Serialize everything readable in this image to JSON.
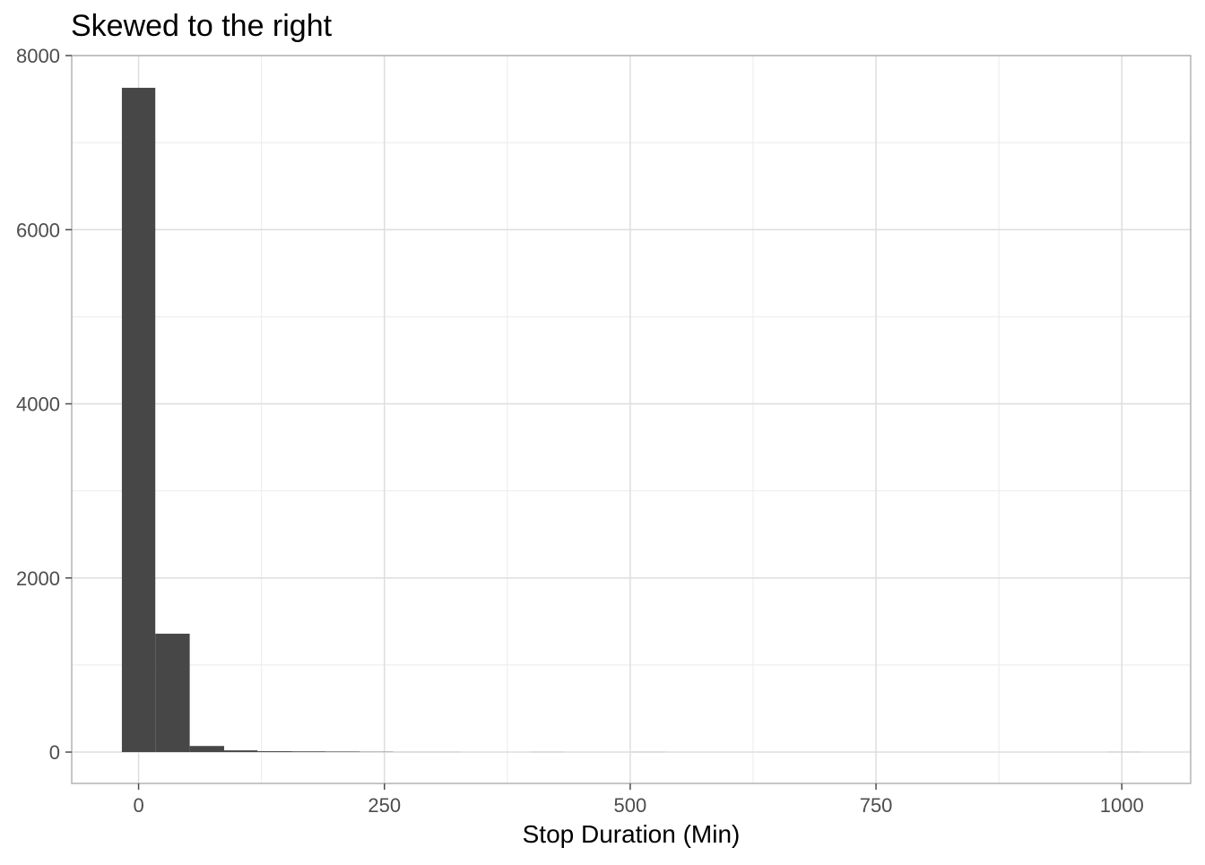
{
  "chart_data": {
    "type": "bar",
    "subtype": "histogram",
    "title": "Skewed to the right",
    "xlabel": "Stop Duration (Min)",
    "ylabel": "",
    "xlim": [
      -68,
      1070
    ],
    "ylim": [
      -360,
      8000
    ],
    "x_ticks": [
      0,
      250,
      500,
      750,
      1000
    ],
    "x_tick_labels": [
      "0",
      "250",
      "500",
      "750",
      "1000"
    ],
    "y_ticks": [
      0,
      2000,
      4000,
      6000,
      8000
    ],
    "y_tick_labels": [
      "0",
      "2000",
      "4000",
      "6000",
      "8000"
    ],
    "grid": true,
    "bar_color": "#474747",
    "bins": [
      {
        "x0": -17,
        "x1": 17,
        "count": 7630
      },
      {
        "x0": 17,
        "x1": 52,
        "count": 1360
      },
      {
        "x0": 52,
        "x1": 87,
        "count": 70
      },
      {
        "x0": 87,
        "x1": 121,
        "count": 20
      },
      {
        "x0": 121,
        "x1": 156,
        "count": 10
      },
      {
        "x0": 156,
        "x1": 190,
        "count": 8
      },
      {
        "x0": 190,
        "x1": 225,
        "count": 6
      },
      {
        "x0": 225,
        "x1": 259,
        "count": 3
      },
      {
        "x0": 259,
        "x1": 294,
        "count": 1
      },
      {
        "x0": 294,
        "x1": 328,
        "count": 1
      },
      {
        "x0": 328,
        "x1": 363,
        "count": 0
      },
      {
        "x0": 363,
        "x1": 398,
        "count": 0
      },
      {
        "x0": 398,
        "x1": 432,
        "count": 1
      },
      {
        "x0": 432,
        "x1": 467,
        "count": 0
      },
      {
        "x0": 467,
        "x1": 501,
        "count": 0
      },
      {
        "x0": 501,
        "x1": 536,
        "count": 1
      },
      {
        "x0": 536,
        "x1": 570,
        "count": 0
      },
      {
        "x0": 570,
        "x1": 605,
        "count": 0
      },
      {
        "x0": 605,
        "x1": 640,
        "count": 0
      },
      {
        "x0": 640,
        "x1": 674,
        "count": 0
      },
      {
        "x0": 674,
        "x1": 709,
        "count": 0
      },
      {
        "x0": 709,
        "x1": 743,
        "count": 0
      },
      {
        "x0": 743,
        "x1": 778,
        "count": 0
      },
      {
        "x0": 778,
        "x1": 812,
        "count": 0
      },
      {
        "x0": 812,
        "x1": 847,
        "count": 0
      },
      {
        "x0": 847,
        "x1": 882,
        "count": 0
      },
      {
        "x0": 882,
        "x1": 916,
        "count": 0
      },
      {
        "x0": 916,
        "x1": 951,
        "count": 0
      },
      {
        "x0": 951,
        "x1": 985,
        "count": 0
      },
      {
        "x0": 985,
        "x1": 1020,
        "count": 1
      }
    ]
  }
}
